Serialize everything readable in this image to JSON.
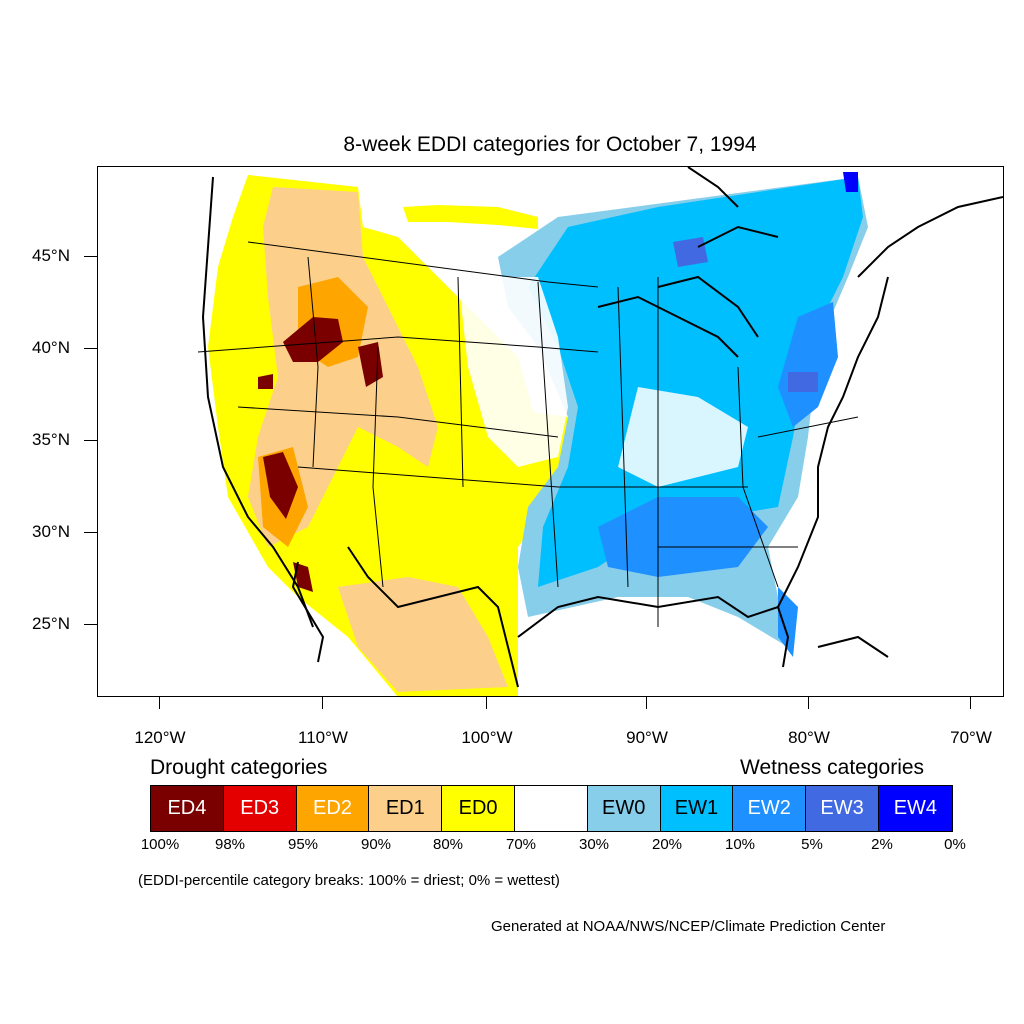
{
  "title": "8-week EDDI categories for October 7, 1994",
  "lat_labels": [
    "45°N",
    "40°N",
    "35°N",
    "30°N",
    "25°N"
  ],
  "lon_labels": [
    "120°W",
    "110°W",
    "100°W",
    "90°W",
    "80°W",
    "70°W"
  ],
  "legend": {
    "drought_heading": "Drought categories",
    "wetness_heading": "Wetness categories",
    "categories": [
      {
        "label": "ED4",
        "color": "#7a0000",
        "text_color": "#ffffff"
      },
      {
        "label": "ED3",
        "color": "#e50000",
        "text_color": "#ffffff"
      },
      {
        "label": "ED2",
        "color": "#ffa500",
        "text_color": "#ffffff"
      },
      {
        "label": "ED1",
        "color": "#fcd08a",
        "text_color": "#000000"
      },
      {
        "label": "ED0",
        "color": "#ffff00",
        "text_color": "#000000"
      },
      {
        "label": "",
        "color": "#ffffff",
        "text_color": "#000000"
      },
      {
        "label": "EW0",
        "color": "#87ceeb",
        "text_color": "#000000"
      },
      {
        "label": "EW1",
        "color": "#00bfff",
        "text_color": "#000000"
      },
      {
        "label": "EW2",
        "color": "#1e90ff",
        "text_color": "#ffffff"
      },
      {
        "label": "EW3",
        "color": "#4169e1",
        "text_color": "#ffffff"
      },
      {
        "label": "EW4",
        "color": "#0000ff",
        "text_color": "#ffffff"
      }
    ],
    "breaks": [
      "100%",
      "98%",
      "95%",
      "90%",
      "80%",
      "70%",
      "30%",
      "20%",
      "10%",
      "5%",
      "2%",
      "0%"
    ]
  },
  "note": "(EDDI-percentile category breaks: 100% = driest; 0% = wettest)",
  "credit": "Generated at NOAA/NWS/NCEP/Climate Prediction Center"
}
